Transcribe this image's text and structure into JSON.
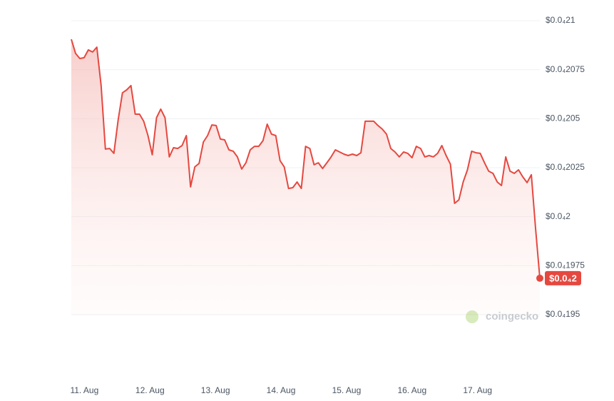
{
  "chart_data": {
    "type": "line",
    "color": "#e5483f",
    "grid": true,
    "watermark": "coingecko",
    "current_price": {
      "value": 1.9686e-05,
      "label": "$0.0₄2"
    },
    "xlim": [
      10.8,
      17.95
    ],
    "xticks": [
      {
        "value": 11,
        "label": "11. Aug"
      },
      {
        "value": 12,
        "label": "12. Aug"
      },
      {
        "value": 13,
        "label": "13. Aug"
      },
      {
        "value": 14,
        "label": "14. Aug"
      },
      {
        "value": 15,
        "label": "15. Aug"
      },
      {
        "value": 16,
        "label": "16. Aug"
      },
      {
        "value": 17,
        "label": "17. Aug"
      }
    ],
    "ylim": [
      1.95e-05,
      2.1e-05
    ],
    "yticks": [
      {
        "value": 2.1e-05,
        "label": "$0.0₄21"
      },
      {
        "value": 2.075e-05,
        "label": "$0.0₄2075"
      },
      {
        "value": 2.05e-05,
        "label": "$0.0₄205"
      },
      {
        "value": 2.025e-05,
        "label": "$0.0₄2025"
      },
      {
        "value": 2e-05,
        "label": "$0.0₄2"
      },
      {
        "value": 1.975e-05,
        "label": "$0.0₄1975"
      },
      {
        "value": 1.95e-05,
        "label": "$0.0₄195"
      }
    ],
    "x": [
      10.8,
      10.865,
      10.93,
      10.995,
      11.06,
      11.125,
      11.19,
      11.255,
      11.32,
      11.385,
      11.45,
      11.515,
      11.58,
      11.645,
      11.71,
      11.775,
      11.84,
      11.905,
      11.97,
      12.035,
      12.1,
      12.165,
      12.23,
      12.295,
      12.36,
      12.425,
      12.49,
      12.555,
      12.62,
      12.685,
      12.75,
      12.815,
      12.88,
      12.945,
      13.01,
      13.075,
      13.14,
      13.205,
      13.27,
      13.335,
      13.4,
      13.465,
      13.53,
      13.595,
      13.66,
      13.725,
      13.79,
      13.855,
      13.92,
      13.985,
      14.05,
      14.115,
      14.18,
      14.245,
      14.31,
      14.375,
      14.44,
      14.505,
      14.57,
      14.635,
      14.7,
      14.765,
      14.83,
      14.895,
      14.96,
      15.025,
      15.09,
      15.155,
      15.22,
      15.285,
      15.35,
      15.415,
      15.48,
      15.545,
      15.61,
      15.675,
      15.74,
      15.805,
      15.87,
      15.935,
      16.0,
      16.065,
      16.13,
      16.195,
      16.26,
      16.325,
      16.39,
      16.455,
      16.52,
      16.585,
      16.65,
      16.715,
      16.78,
      16.845,
      16.91,
      16.975,
      17.04,
      17.105,
      17.17,
      17.235,
      17.3,
      17.365,
      17.43,
      17.495,
      17.56,
      17.625,
      17.69,
      17.755,
      17.82,
      17.885,
      17.95
    ],
    "values": [
      2.0905e-05,
      2.0833e-05,
      2.0807e-05,
      2.0811e-05,
      2.0851e-05,
      2.084e-05,
      2.0865e-05,
      2.0669e-05,
      2.0345e-05,
      2.0348e-05,
      2.0323e-05,
      2.0494e-05,
      2.0632e-05,
      2.0647e-05,
      2.0669e-05,
      2.0523e-05,
      2.0523e-05,
      2.0487e-05,
      2.0414e-05,
      2.0316e-05,
      2.0505e-05,
      2.0549e-05,
      2.0505e-05,
      2.0305e-05,
      2.0352e-05,
      2.0348e-05,
      2.0363e-05,
      2.0414e-05,
      2.0152e-05,
      2.0254e-05,
      2.0272e-05,
      2.0381e-05,
      2.0414e-05,
      2.0468e-05,
      2.0465e-05,
      2.0396e-05,
      2.0392e-05,
      2.0341e-05,
      2.0334e-05,
      2.0305e-05,
      2.0243e-05,
      2.0275e-05,
      2.0341e-05,
      2.0359e-05,
      2.0359e-05,
      2.0388e-05,
      2.0472e-05,
      2.0421e-05,
      2.0414e-05,
      2.0286e-05,
      2.0254e-05,
      2.0144e-05,
      2.0148e-05,
      2.0177e-05,
      2.0144e-05,
      2.0359e-05,
      2.0348e-05,
      2.0265e-05,
      2.0275e-05,
      2.0246e-05,
      2.0275e-05,
      2.0305e-05,
      2.0341e-05,
      2.033e-05,
      2.0319e-05,
      2.0312e-05,
      2.0319e-05,
      2.0312e-05,
      2.0326e-05,
      2.0487e-05,
      2.0487e-05,
      2.0487e-05,
      2.0465e-05,
      2.0447e-05,
      2.0421e-05,
      2.0348e-05,
      2.033e-05,
      2.0305e-05,
      2.033e-05,
      2.0323e-05,
      2.0301e-05,
      2.0359e-05,
      2.0348e-05,
      2.0305e-05,
      2.0312e-05,
      2.0305e-05,
      2.0323e-05,
      2.0363e-05,
      2.0312e-05,
      2.0268e-05,
      2.0068e-05,
      2.0086e-05,
      2.0177e-05,
      2.0239e-05,
      2.0334e-05,
      2.0326e-05,
      2.0323e-05,
      2.0275e-05,
      2.0232e-05,
      2.0221e-05,
      2.0177e-05,
      2.0159e-05,
      2.0305e-05,
      2.0232e-05,
      2.0221e-05,
      2.0239e-05,
      2.0203e-05,
      2.0174e-05,
      2.0214e-05,
      1.9941e-05,
      1.9686e-05
    ]
  }
}
